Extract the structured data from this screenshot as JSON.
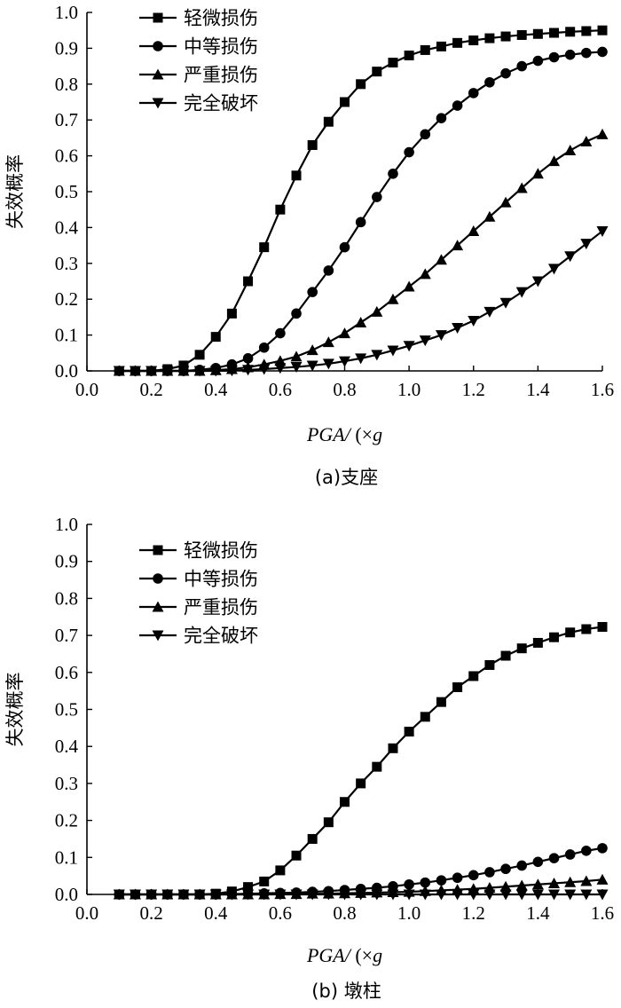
{
  "chart_data": [
    {
      "type": "line",
      "caption": "(a)支座",
      "xlabel_main": "PGA/",
      "xlabel_unit_prefix": "(×",
      "xlabel_unit_var": "g",
      "ylabel": "失效概率",
      "xlim": [
        0.0,
        1.6
      ],
      "ylim": [
        0.0,
        1.0
      ],
      "xticks": [
        "0.0",
        "0.2",
        "0.4",
        "0.6",
        "0.8",
        "1.0",
        "1.2",
        "1.4",
        "1.6"
      ],
      "yticks": [
        "0.0",
        "0.1",
        "0.2",
        "0.3",
        "0.4",
        "0.5",
        "0.6",
        "0.7",
        "0.8",
        "0.9",
        "1.0"
      ],
      "legend_position": "top-left",
      "grid": false,
      "x": [
        0.1,
        0.15,
        0.2,
        0.25,
        0.3,
        0.35,
        0.4,
        0.45,
        0.5,
        0.55,
        0.6,
        0.65,
        0.7,
        0.75,
        0.8,
        0.85,
        0.9,
        0.95,
        1.0,
        1.05,
        1.1,
        1.15,
        1.2,
        1.25,
        1.3,
        1.35,
        1.4,
        1.45,
        1.5,
        1.55,
        1.6
      ],
      "series": [
        {
          "name": "轻微损伤",
          "marker": "square",
          "values": [
            0.0,
            0.0,
            0.0,
            0.005,
            0.015,
            0.045,
            0.095,
            0.16,
            0.25,
            0.345,
            0.45,
            0.545,
            0.63,
            0.695,
            0.75,
            0.8,
            0.835,
            0.86,
            0.88,
            0.895,
            0.905,
            0.915,
            0.922,
            0.928,
            0.933,
            0.937,
            0.94,
            0.943,
            0.946,
            0.948,
            0.95
          ]
        },
        {
          "name": "中等损伤",
          "marker": "circle",
          "values": [
            0.0,
            0.0,
            0.0,
            0.0,
            0.0,
            0.003,
            0.008,
            0.018,
            0.035,
            0.065,
            0.105,
            0.16,
            0.22,
            0.28,
            0.345,
            0.415,
            0.485,
            0.55,
            0.61,
            0.66,
            0.705,
            0.74,
            0.775,
            0.805,
            0.83,
            0.85,
            0.865,
            0.875,
            0.882,
            0.887,
            0.89
          ]
        },
        {
          "name": "严重损伤",
          "marker": "triangle-up",
          "values": [
            0.0,
            0.0,
            0.0,
            0.0,
            0.0,
            0.0,
            0.002,
            0.005,
            0.01,
            0.018,
            0.028,
            0.04,
            0.058,
            0.08,
            0.105,
            0.135,
            0.165,
            0.2,
            0.235,
            0.27,
            0.31,
            0.35,
            0.39,
            0.43,
            0.47,
            0.51,
            0.55,
            0.585,
            0.615,
            0.64,
            0.66
          ]
        },
        {
          "name": "完全破坏",
          "marker": "triangle-down",
          "values": [
            0.0,
            0.0,
            0.0,
            0.0,
            0.0,
            0.0,
            0.0,
            0.001,
            0.003,
            0.005,
            0.008,
            0.011,
            0.015,
            0.02,
            0.027,
            0.035,
            0.045,
            0.057,
            0.07,
            0.085,
            0.1,
            0.12,
            0.14,
            0.165,
            0.19,
            0.22,
            0.25,
            0.285,
            0.32,
            0.355,
            0.39
          ]
        }
      ]
    },
    {
      "type": "line",
      "caption": "(b) 墩柱",
      "xlabel_main": "PGA/",
      "xlabel_unit_prefix": "(×",
      "xlabel_unit_var": "g",
      "ylabel": "失效概率",
      "xlim": [
        0.0,
        1.6
      ],
      "ylim": [
        0.0,
        1.0
      ],
      "xticks": [
        "0.0",
        "0.2",
        "0.4",
        "0.6",
        "0.8",
        "1.0",
        "1.2",
        "1.4",
        "1.6"
      ],
      "yticks": [
        "0.0",
        "0.1",
        "0.2",
        "0.3",
        "0.4",
        "0.5",
        "0.6",
        "0.7",
        "0.8",
        "0.9",
        "1.0"
      ],
      "legend_position": "top-left",
      "grid": false,
      "x": [
        0.1,
        0.15,
        0.2,
        0.25,
        0.3,
        0.35,
        0.4,
        0.45,
        0.5,
        0.55,
        0.6,
        0.65,
        0.7,
        0.75,
        0.8,
        0.85,
        0.9,
        0.95,
        1.0,
        1.05,
        1.1,
        1.15,
        1.2,
        1.25,
        1.3,
        1.35,
        1.4,
        1.45,
        1.5,
        1.55,
        1.6
      ],
      "series": [
        {
          "name": "轻微损伤",
          "marker": "square",
          "values": [
            0.0,
            0.0,
            0.0,
            0.0,
            0.0,
            0.0,
            0.002,
            0.008,
            0.02,
            0.035,
            0.065,
            0.105,
            0.15,
            0.195,
            0.25,
            0.3,
            0.345,
            0.395,
            0.44,
            0.48,
            0.52,
            0.56,
            0.59,
            0.62,
            0.645,
            0.665,
            0.68,
            0.695,
            0.708,
            0.717,
            0.723
          ]
        },
        {
          "name": "中等损伤",
          "marker": "circle",
          "values": [
            0.0,
            0.0,
            0.0,
            0.0,
            0.0,
            0.0,
            0.0,
            0.001,
            0.002,
            0.003,
            0.004,
            0.005,
            0.007,
            0.009,
            0.012,
            0.015,
            0.018,
            0.022,
            0.027,
            0.032,
            0.038,
            0.045,
            0.052,
            0.06,
            0.069,
            0.078,
            0.088,
            0.098,
            0.108,
            0.118,
            0.125
          ]
        },
        {
          "name": "严重损伤",
          "marker": "triangle-up",
          "values": [
            0.0,
            0.0,
            0.0,
            0.0,
            0.0,
            0.0,
            0.0,
            0.0,
            0.0,
            0.0,
            0.001,
            0.001,
            0.002,
            0.002,
            0.003,
            0.004,
            0.005,
            0.006,
            0.007,
            0.009,
            0.011,
            0.013,
            0.015,
            0.018,
            0.021,
            0.024,
            0.027,
            0.03,
            0.033,
            0.036,
            0.04
          ]
        },
        {
          "name": "完全破坏",
          "marker": "triangle-down",
          "values": [
            0.0,
            0.0,
            0.0,
            0.0,
            0.0,
            0.0,
            0.0,
            0.0,
            0.0,
            0.0,
            0.0,
            0.0,
            0.0,
            0.0,
            0.0,
            0.0,
            0.0,
            0.0,
            0.0,
            0.0,
            0.0,
            0.0,
            0.0,
            0.0,
            0.0,
            0.0,
            0.0,
            0.0,
            0.0,
            0.0,
            0.0
          ]
        }
      ]
    }
  ]
}
